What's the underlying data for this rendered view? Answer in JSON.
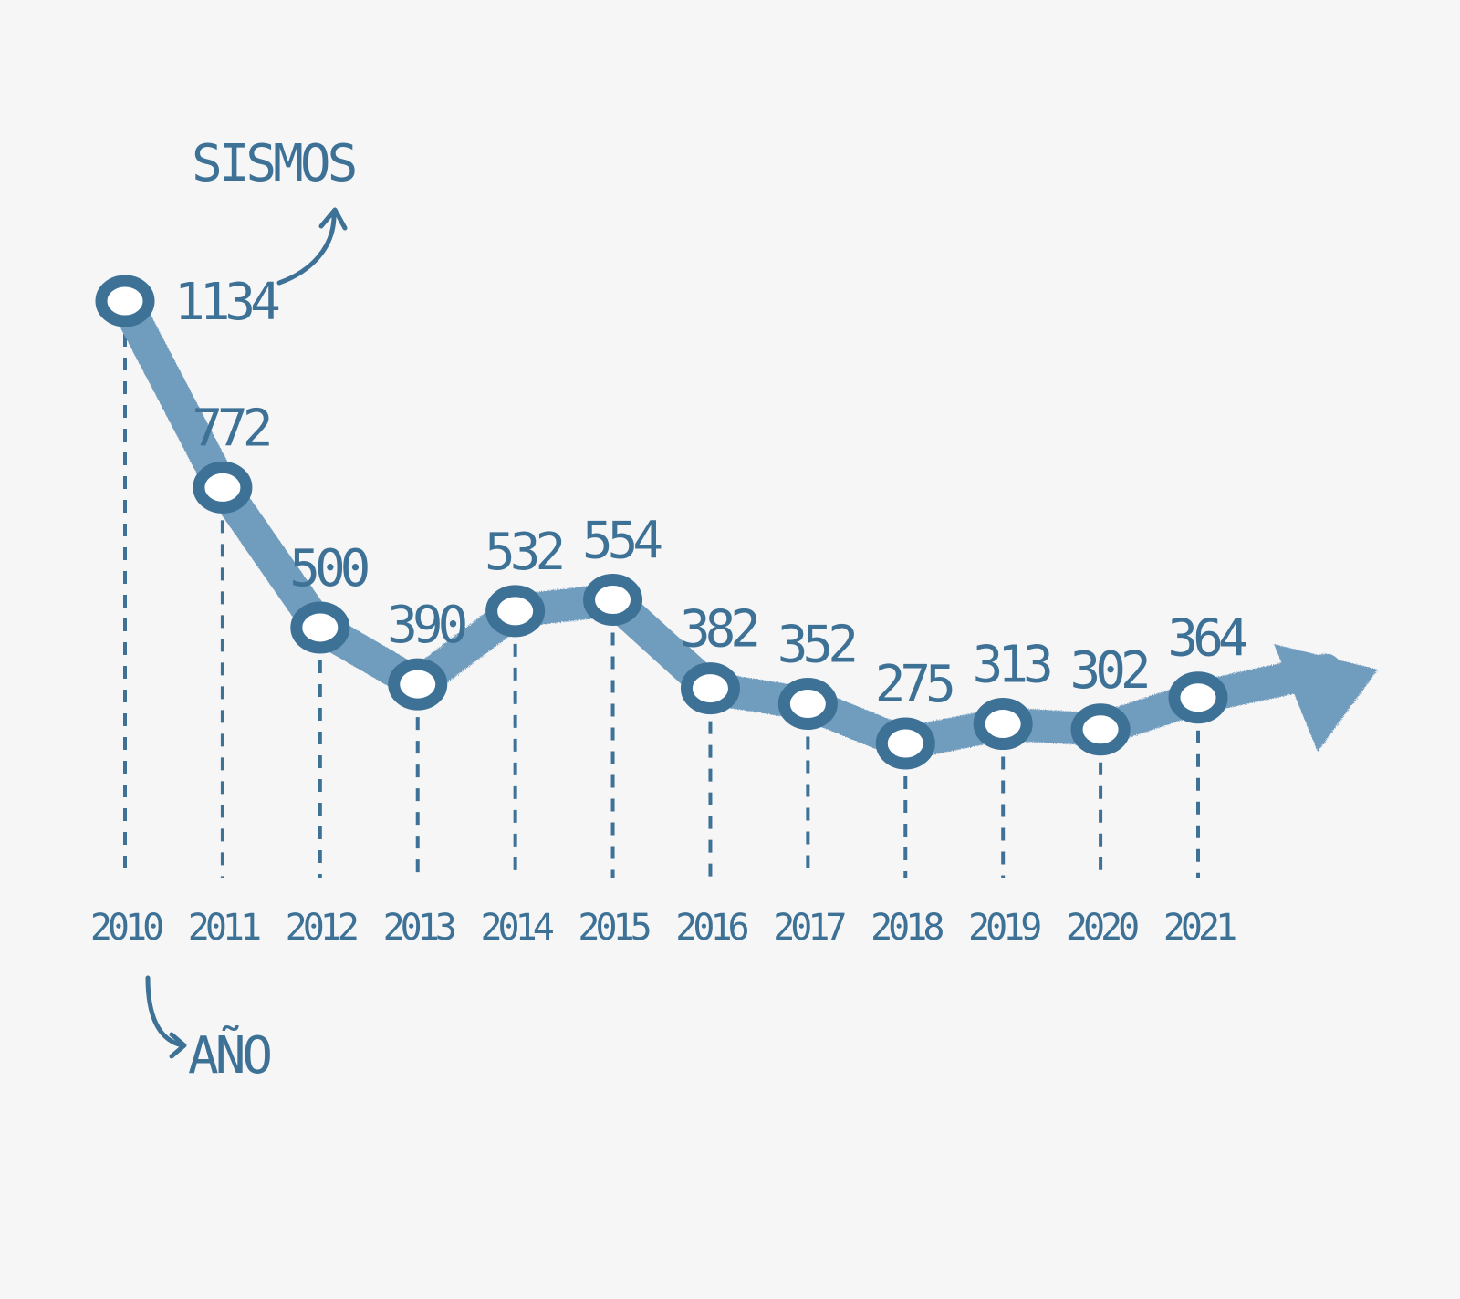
{
  "colors": {
    "background": "#f6f6f7",
    "ink": "#3e7196",
    "line": "#6f9cbe",
    "marker_fill": "#ffffff"
  },
  "chart_data": {
    "type": "line",
    "title": "",
    "xlabel": "AÑO",
    "ylabel": "SISMOS",
    "categories": [
      "2010",
      "2011",
      "2012",
      "2013",
      "2014",
      "2015",
      "2016",
      "2017",
      "2018",
      "2019",
      "2020",
      "2021"
    ],
    "series": [
      {
        "values": [
          1134,
          772,
          500,
          390,
          532,
          554,
          382,
          352,
          275,
          313,
          302,
          364
        ]
      }
    ],
    "data_labels": [
      "1134",
      "772",
      "500",
      "390",
      "532",
      "554",
      "382",
      "352",
      "275",
      "313",
      "302",
      "364"
    ],
    "grid": false,
    "legend": "none",
    "trend_arrow": true
  }
}
